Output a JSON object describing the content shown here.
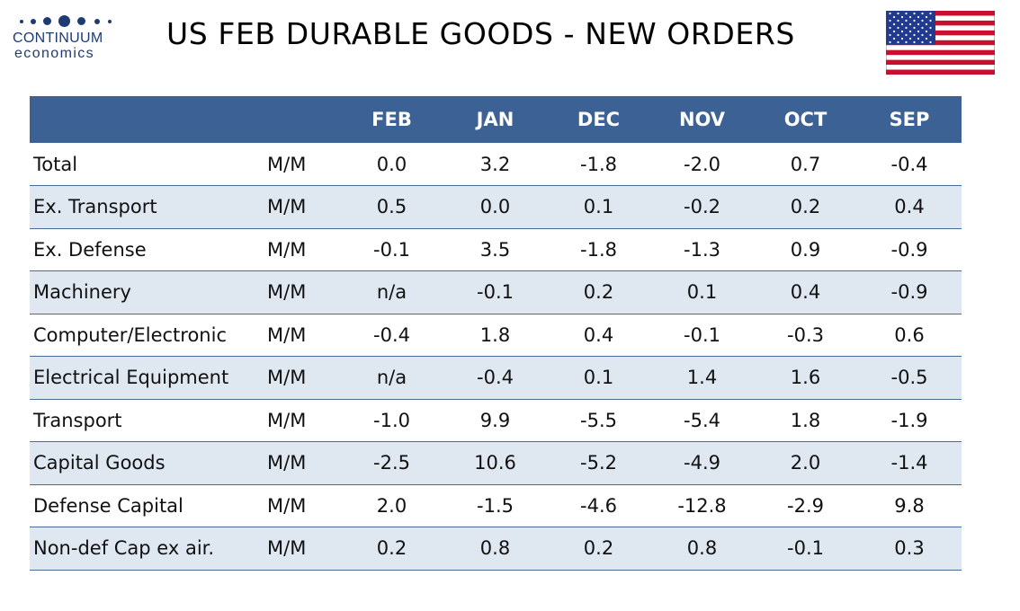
{
  "logo": {
    "name": "CONTINUUM",
    "sub": "economics"
  },
  "title": "US FEB DURABLE GOODS - NEW ORDERS",
  "flag": {
    "icon": "us-flag-icon"
  },
  "colors": {
    "header_bg": "#3c6194",
    "row_alt_bg": "#dfe7f1",
    "logo_blue": "#1f3b73",
    "rule": "#4a6a9a"
  },
  "table": {
    "columns": [
      "",
      "",
      "FEB",
      "JAN",
      "DEC",
      "NOV",
      "OCT",
      "SEP"
    ],
    "rows": [
      {
        "label": "Total",
        "unit": "M/M",
        "values": [
          "0.0",
          "3.2",
          "-1.8",
          "-2.0",
          "0.7",
          "-0.4"
        ]
      },
      {
        "label": "Ex. Transport",
        "unit": "M/M",
        "values": [
          "0.5",
          "0.0",
          "0.1",
          "-0.2",
          "0.2",
          "0.4"
        ]
      },
      {
        "label": "Ex. Defense",
        "unit": "M/M",
        "values": [
          "-0.1",
          "3.5",
          "-1.8",
          "-1.3",
          "0.9",
          "-0.9"
        ]
      },
      {
        "label": "Machinery",
        "unit": "M/M",
        "values": [
          "n/a",
          "-0.1",
          "0.2",
          "0.1",
          "0.4",
          "-0.9"
        ]
      },
      {
        "label": "Computer/Electronic",
        "unit": "M/M",
        "values": [
          "-0.4",
          "1.8",
          "0.4",
          "-0.1",
          "-0.3",
          "0.6"
        ]
      },
      {
        "label": "Electrical Equipment",
        "unit": "M/M",
        "values": [
          "n/a",
          "-0.4",
          "0.1",
          "1.4",
          "1.6",
          "-0.5"
        ]
      },
      {
        "label": "Transport",
        "unit": "M/M",
        "values": [
          "-1.0",
          "9.9",
          "-5.5",
          "-5.4",
          "1.8",
          "-1.9"
        ]
      },
      {
        "label": "Capital Goods",
        "unit": "M/M",
        "values": [
          "-2.5",
          "10.6",
          "-5.2",
          "-4.9",
          "2.0",
          "-1.4"
        ]
      },
      {
        "label": "Defense Capital",
        "unit": "M/M",
        "values": [
          "2.0",
          "-1.5",
          "-4.6",
          "-12.8",
          "-2.9",
          "9.8"
        ]
      },
      {
        "label": "Non-def Cap ex air.",
        "unit": "M/M",
        "values": [
          "0.2",
          "0.8",
          "0.2",
          "0.8",
          "-0.1",
          "0.3"
        ]
      }
    ]
  }
}
